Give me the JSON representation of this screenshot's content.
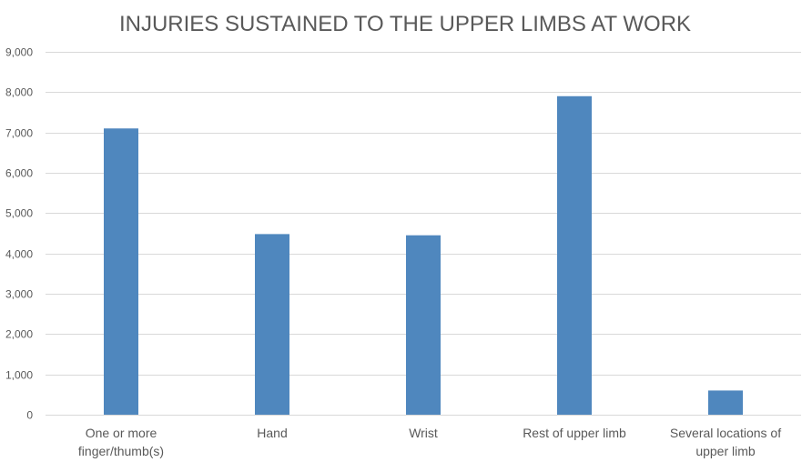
{
  "chart_data": {
    "type": "bar",
    "title": "INJURIES SUSTAINED TO THE UPPER LIMBS AT WORK",
    "xlabel": "",
    "ylabel": "",
    "categories": [
      [
        "One or more",
        "finger/thumb(s)"
      ],
      [
        "Hand"
      ],
      [
        "Wrist"
      ],
      [
        "Rest of upper limb"
      ],
      [
        "Several locations of",
        "upper limb"
      ]
    ],
    "values": [
      7100,
      4480,
      4450,
      7900,
      600
    ],
    "ylim": [
      0,
      9000
    ],
    "yticks": [
      "0",
      "1,000",
      "2,000",
      "3,000",
      "4,000",
      "5,000",
      "6,000",
      "7,000",
      "8,000",
      "9,000"
    ],
    "ytick_values": [
      0,
      1000,
      2000,
      3000,
      4000,
      5000,
      6000,
      7000,
      8000,
      9000
    ],
    "grid": true,
    "legend": "none",
    "bar_color": "#4f87be",
    "grid_color": "#d9d9d9",
    "text_color": "#595959"
  }
}
